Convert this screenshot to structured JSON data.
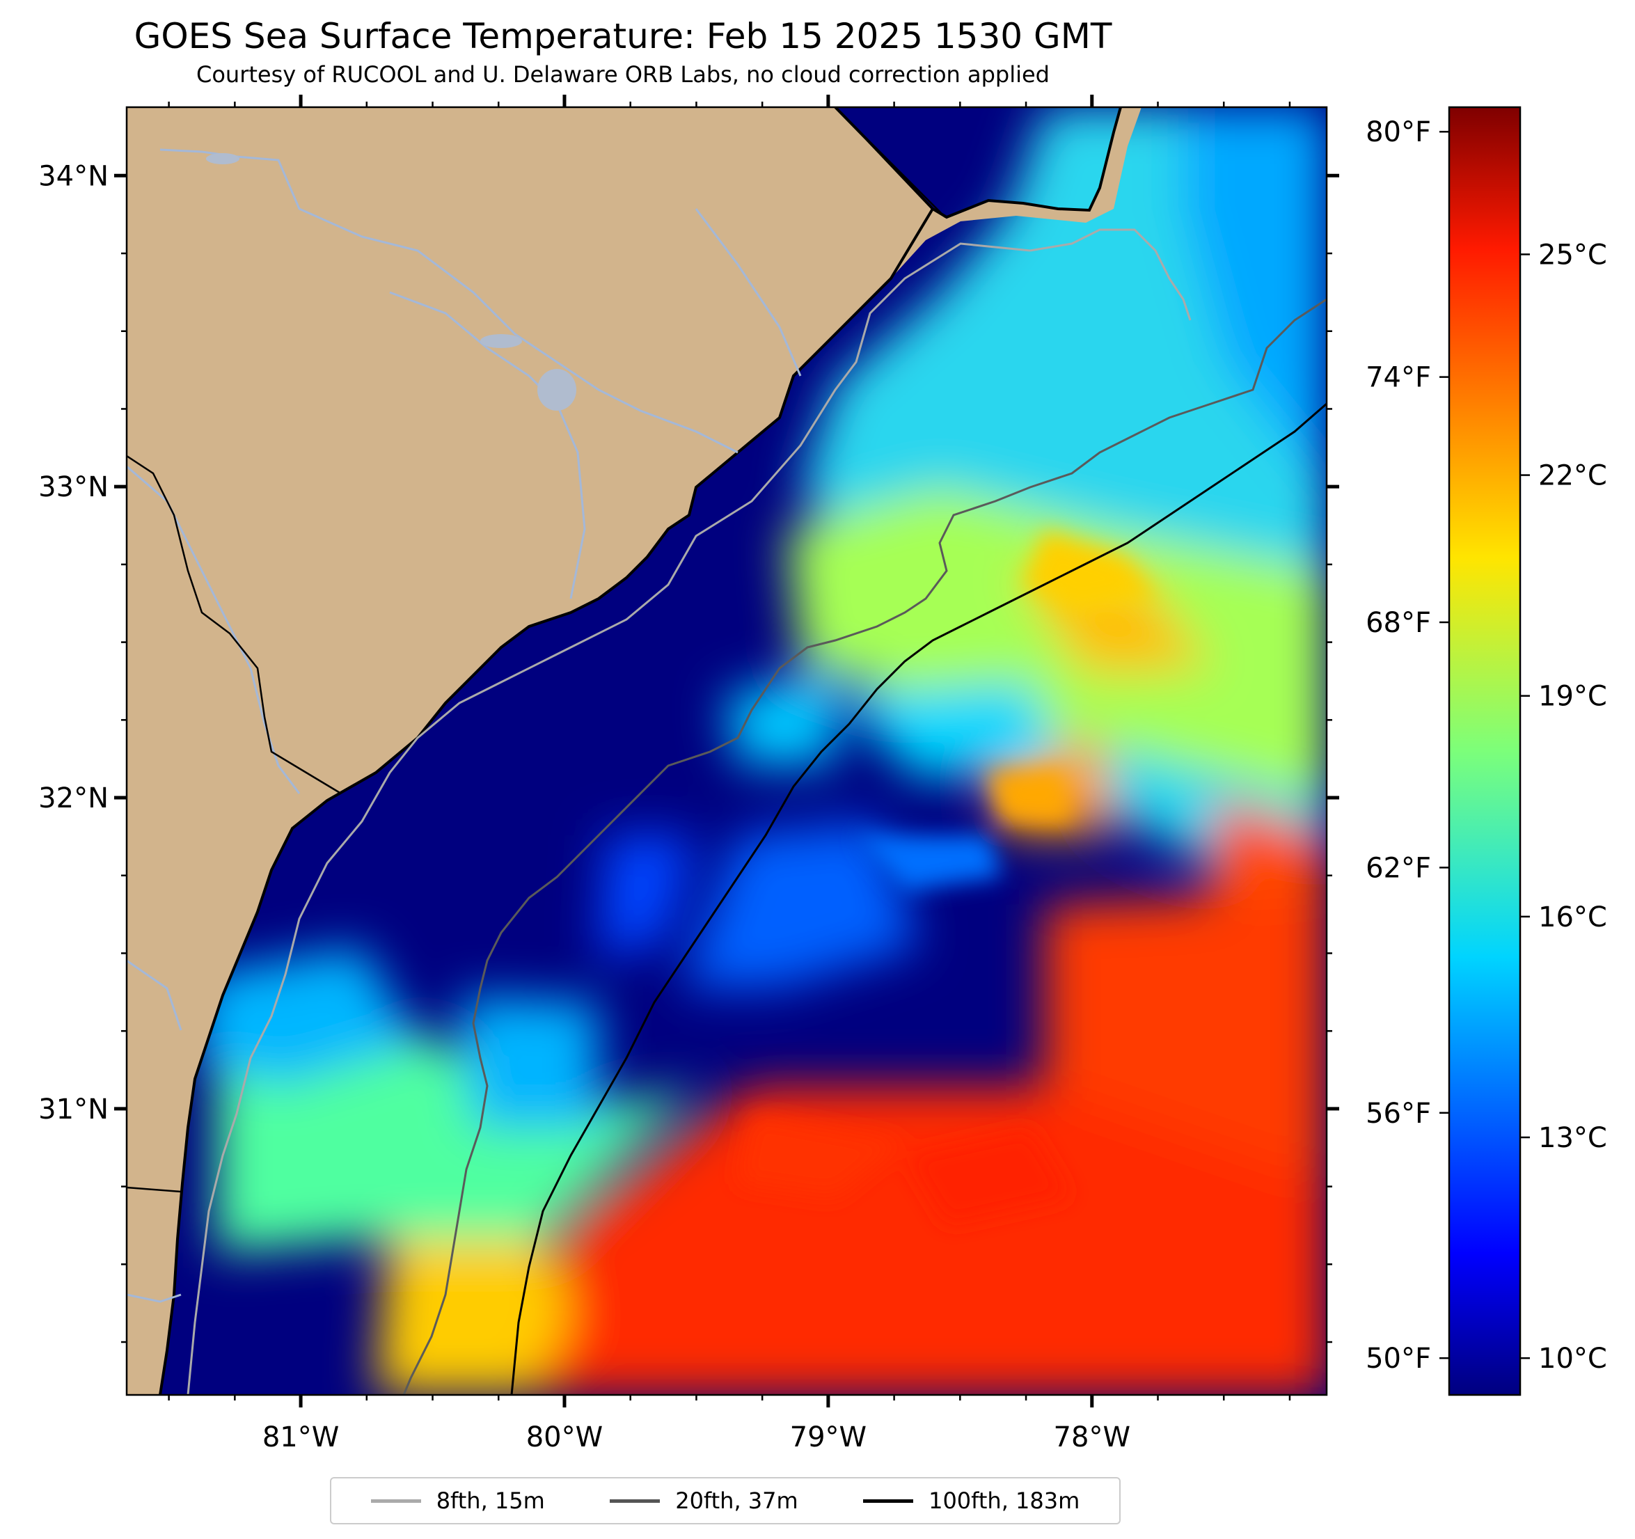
{
  "title": "GOES Sea Surface Temperature: Feb 15 2025 1530 GMT",
  "subtitle": "Courtesy of RUCOOL and U. Delaware ORB Labs, no cloud correction applied",
  "map": {
    "lon_range": [
      -81.66,
      -77.11
    ],
    "lat_range": [
      30.08,
      34.22
    ],
    "lon_ticks": [
      {
        "value": -81,
        "label": "81°W"
      },
      {
        "value": -80,
        "label": "80°W"
      },
      {
        "value": -79,
        "label": "79°W"
      },
      {
        "value": -78,
        "label": "78°W"
      }
    ],
    "lat_ticks": [
      {
        "value": 34,
        "label": "34°N"
      },
      {
        "value": 33,
        "label": "33°N"
      },
      {
        "value": 32,
        "label": "32°N"
      },
      {
        "value": 31,
        "label": "31°N"
      }
    ],
    "colors": {
      "land": "#d2b48c",
      "rivers": "#a4b8d8",
      "coastline": "#000000",
      "gulf_stream_core": "#ff2000",
      "cold_shelf": "#00007f"
    }
  },
  "colorbar": {
    "colormap": "jet",
    "range_c": [
      9.5,
      27.0
    ],
    "celsius_ticks": [
      {
        "value": 25,
        "label": "25°C"
      },
      {
        "value": 22,
        "label": "22°C"
      },
      {
        "value": 19,
        "label": "19°C"
      },
      {
        "value": 16,
        "label": "16°C"
      },
      {
        "value": 13,
        "label": "13°C"
      },
      {
        "value": 10,
        "label": "10°C"
      }
    ],
    "fahrenheit_ticks": [
      {
        "value": 80,
        "label": "80°F"
      },
      {
        "value": 74,
        "label": "74°F"
      },
      {
        "value": 68,
        "label": "68°F"
      },
      {
        "value": 62,
        "label": "62°F"
      },
      {
        "value": 56,
        "label": "56°F"
      },
      {
        "value": 50,
        "label": "50°F"
      }
    ]
  },
  "legend": [
    {
      "label": "8fth, 15m",
      "color": "#aaaaaa"
    },
    {
      "label": "20fth, 37m",
      "color": "#555555"
    },
    {
      "label": "100fth, 183m",
      "color": "#000000"
    }
  ]
}
